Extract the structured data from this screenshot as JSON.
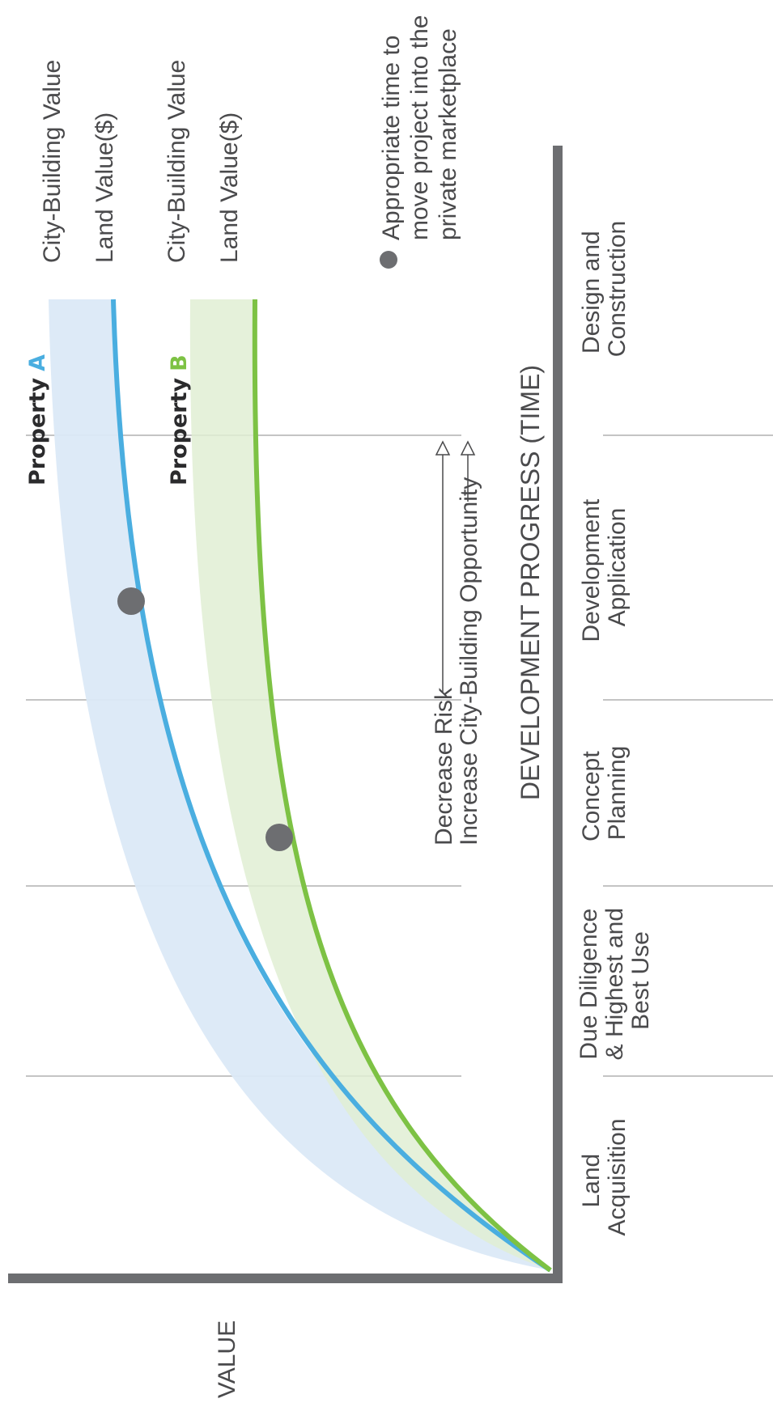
{
  "axes": {
    "x_label": "DEVELOPMENT PROGRESS (TIME)",
    "y_label": "VALUE"
  },
  "stages": [
    {
      "lines": [
        "Land",
        "Acquisition"
      ]
    },
    {
      "lines": [
        "Due Diligence",
        "& Highest and",
        "Best Use"
      ]
    },
    {
      "lines": [
        "Concept",
        "Planning"
      ]
    },
    {
      "lines": [
        "Development",
        "Application"
      ]
    },
    {
      "lines": [
        "Design and",
        "Construction"
      ]
    }
  ],
  "properties": [
    {
      "label": "Property",
      "letter": "A",
      "color": "#4aaee0",
      "band_color": "#dbe9f7",
      "city_building_label": "City-Building Value",
      "land_value_label": "Land Value($)"
    },
    {
      "label": "Property",
      "letter": "B",
      "color": "#7dc244",
      "band_color": "#e1efd4",
      "city_building_label": "City-Building Value",
      "land_value_label": "Land Value($)"
    }
  ],
  "arrows": {
    "risk": "Decrease Risk",
    "opportunity": "Increase City-Building Opportunity"
  },
  "legend": {
    "marker_color": "#6d6e71",
    "lines": [
      "Appropriate time to",
      "move project into the",
      "private marketplace"
    ]
  }
}
